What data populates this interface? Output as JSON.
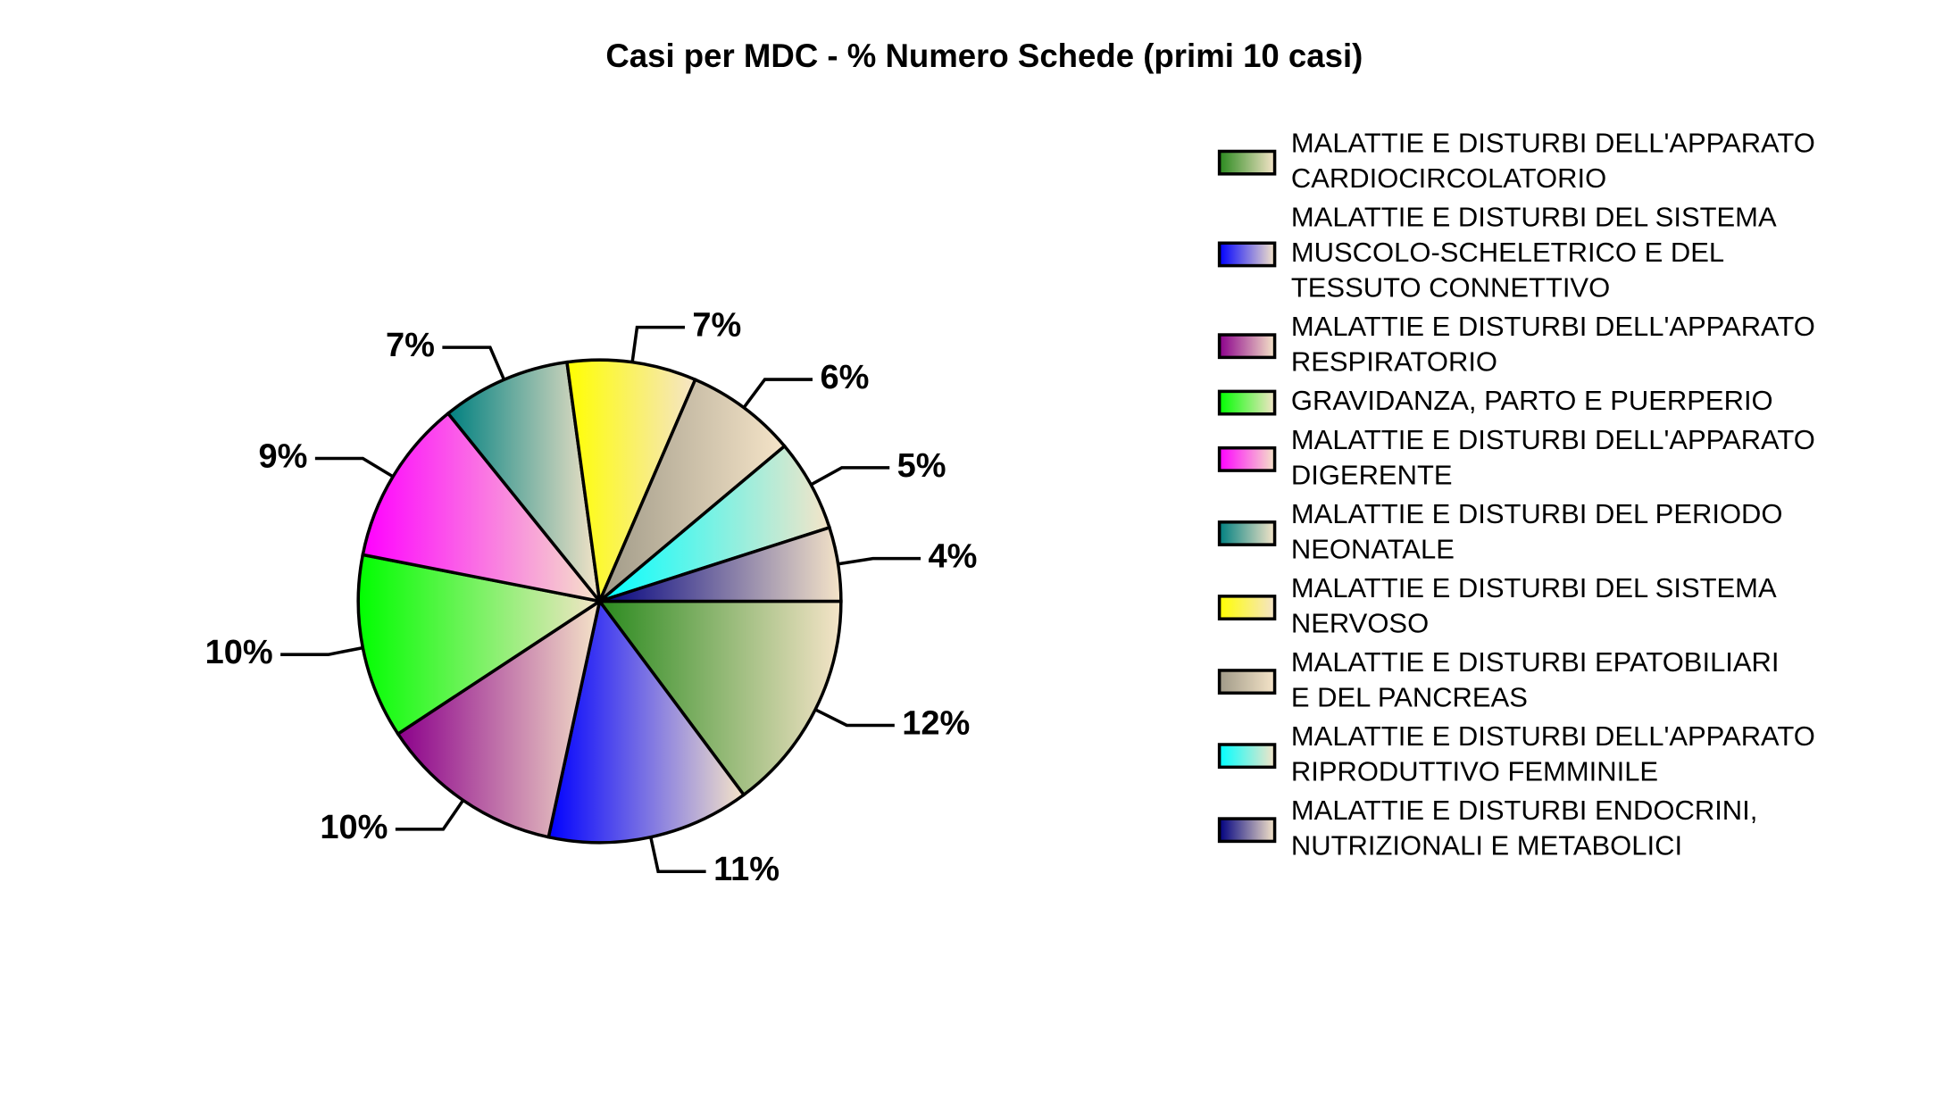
{
  "chart_data": {
    "type": "pie",
    "title": "Casi per MDC - % Numero Schede (primi 10 casi)",
    "categories": [
      [
        "MALATTIE E DISTURBI DELL'APPARATO",
        "CARDIOCIRCOLATORIO"
      ],
      [
        "MALATTIE E DISTURBI DEL SISTEMA",
        "MUSCOLO-SCHELETRICO E DEL",
        "TESSUTO CONNETTIVO"
      ],
      [
        "MALATTIE E DISTURBI DELL'APPARATO",
        "RESPIRATORIO"
      ],
      [
        "GRAVIDANZA, PARTO E PUERPERIO"
      ],
      [
        "MALATTIE E DISTURBI DELL'APPARATO",
        "DIGERENTE"
      ],
      [
        "MALATTIE E DISTURBI DEL PERIODO",
        "NEONATALE"
      ],
      [
        "MALATTIE E DISTURBI DEL SISTEMA",
        "NERVOSO"
      ],
      [
        "MALATTIE E DISTURBI EPATOBILIARI",
        "E DEL PANCREAS"
      ],
      [
        "MALATTIE E DISTURBI DELL'APPARATO",
        "RIPRODUTTIVO FEMMINILE"
      ],
      [
        "MALATTIE E DISTURBI ENDOCRINI,",
        "NUTRIZIONALI E METABOLICI"
      ]
    ],
    "values": [
      12,
      11,
      10,
      10,
      9,
      7,
      7,
      6,
      5,
      4
    ],
    "value_labels": [
      "12%",
      "11%",
      "10%",
      "10%",
      "9%",
      "7%",
      "7%",
      "6%",
      "5%",
      "4%"
    ],
    "colors": [
      "#2a8a1e",
      "#0000ff",
      "#8b008b",
      "#00ff00",
      "#ff00ff",
      "#008080",
      "#ffff00",
      "#a09a88",
      "#00ffff",
      "#000080"
    ],
    "gradient_end": "#f5e4c8",
    "legend": "right"
  }
}
